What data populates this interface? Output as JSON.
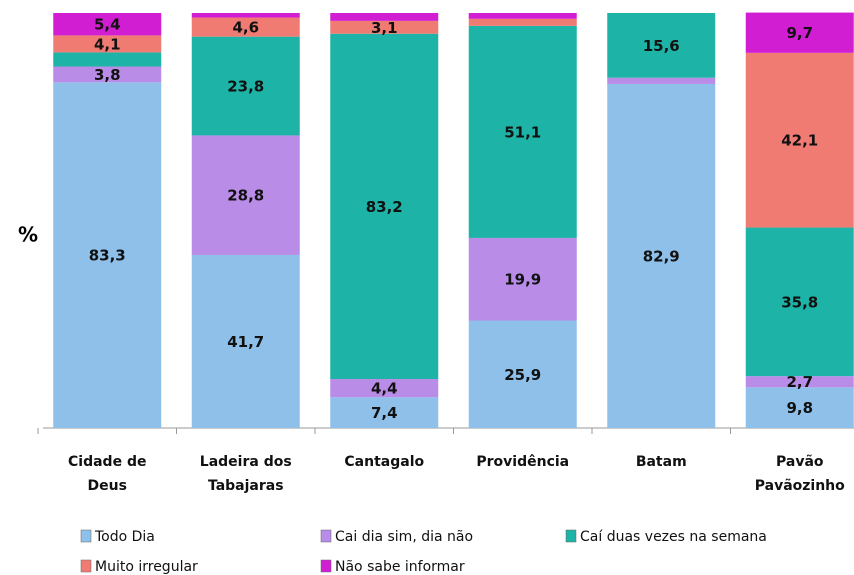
{
  "chart_data": {
    "type": "stacked_bar",
    "y_label": "%",
    "categories": [
      "Cidade de Deus",
      "Ladeira dos Tabajaras",
      "Cantagalo",
      "Providência",
      "Batam",
      "Pavão Pavãozinho"
    ],
    "ylim": [
      0,
      100
    ],
    "series": [
      {
        "name": "Todo Dia",
        "color": "#8ec0ea",
        "values": [
          83.3,
          41.7,
          7.4,
          25.9,
          82.9,
          9.8
        ],
        "value_labels": [
          "83,3",
          "41,7",
          "7,4",
          "25,9",
          "82,9",
          "9,8"
        ]
      },
      {
        "name": "Cai dia sim, dia não",
        "color": "#b98ce8",
        "values": [
          3.8,
          28.8,
          4.4,
          19.9,
          1.5,
          2.7
        ],
        "value_labels": [
          "3,8",
          "28,8",
          "4,4",
          "19,9",
          null,
          "2,7"
        ]
      },
      {
        "name": "Caí duas vezes na semana",
        "color": "#1db3a6",
        "values": [
          3.4,
          23.8,
          83.2,
          51.1,
          15.6,
          35.8
        ],
        "value_labels": [
          null,
          "23,8",
          "83,2",
          "51,1",
          "15,6",
          "35,8"
        ]
      },
      {
        "name": "Muito irregular",
        "color": "#f07b73",
        "values": [
          4.1,
          4.6,
          3.1,
          1.7,
          0,
          42.1
        ],
        "value_labels": [
          "4,1",
          "4,6",
          "3,1",
          null,
          null,
          "42,1"
        ]
      },
      {
        "name": "Não sabe informar",
        "color": "#d21ed2",
        "values": [
          5.4,
          1.1,
          1.9,
          1.4,
          0,
          9.7
        ],
        "value_labels": [
          "5,4",
          null,
          null,
          null,
          null,
          "9,7"
        ]
      }
    ]
  }
}
